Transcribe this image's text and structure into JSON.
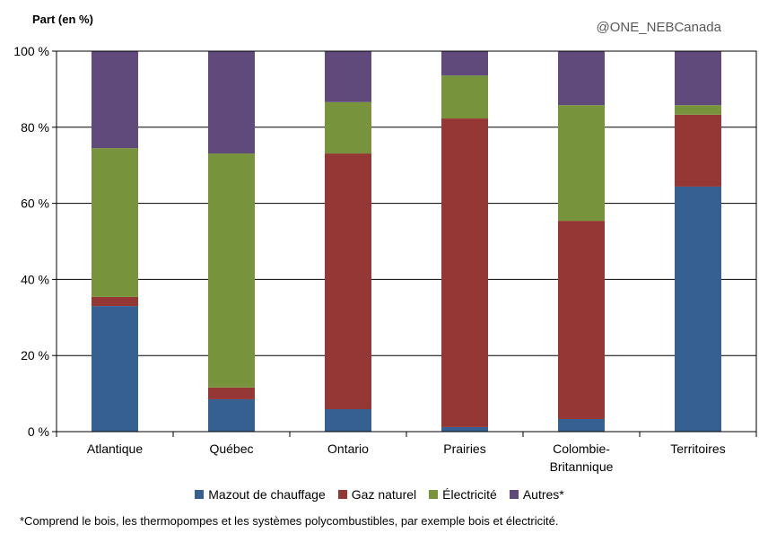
{
  "chart_data": {
    "type": "bar",
    "stacked": true,
    "ylabel": "Part (en %)",
    "watermark": "@ONE_NEBCanada",
    "ylim": [
      0,
      100
    ],
    "yticks": [
      "0 %",
      "20 %",
      "40 %",
      "60 %",
      "80 %",
      "100 %"
    ],
    "grid": true,
    "legend_position": "bottom",
    "categories": [
      "Atlantique",
      "Québec",
      "Ontario",
      "Prairies",
      "Colombie-\nBritannique",
      "Territoires"
    ],
    "series": [
      {
        "name": "Mazout de chauffage",
        "color": "#376092",
        "values": [
          33.0,
          8.5,
          5.9,
          1.2,
          3.3,
          64.4
        ]
      },
      {
        "name": "Gaz naturel",
        "color": "#953735",
        "values": [
          2.4,
          3.1,
          67.2,
          81.1,
          52.1,
          18.9
        ]
      },
      {
        "name": "Électricité",
        "color": "#77933C",
        "values": [
          39.1,
          61.5,
          13.5,
          11.3,
          30.4,
          2.5
        ]
      },
      {
        "name": "Autres*",
        "color": "#604A7B",
        "values": [
          25.5,
          26.9,
          13.4,
          6.4,
          14.2,
          14.2
        ]
      }
    ],
    "footnote": "*Comprend le bois, les thermopompes et les systèmes polycombustibles, par exemple bois et électricité."
  }
}
